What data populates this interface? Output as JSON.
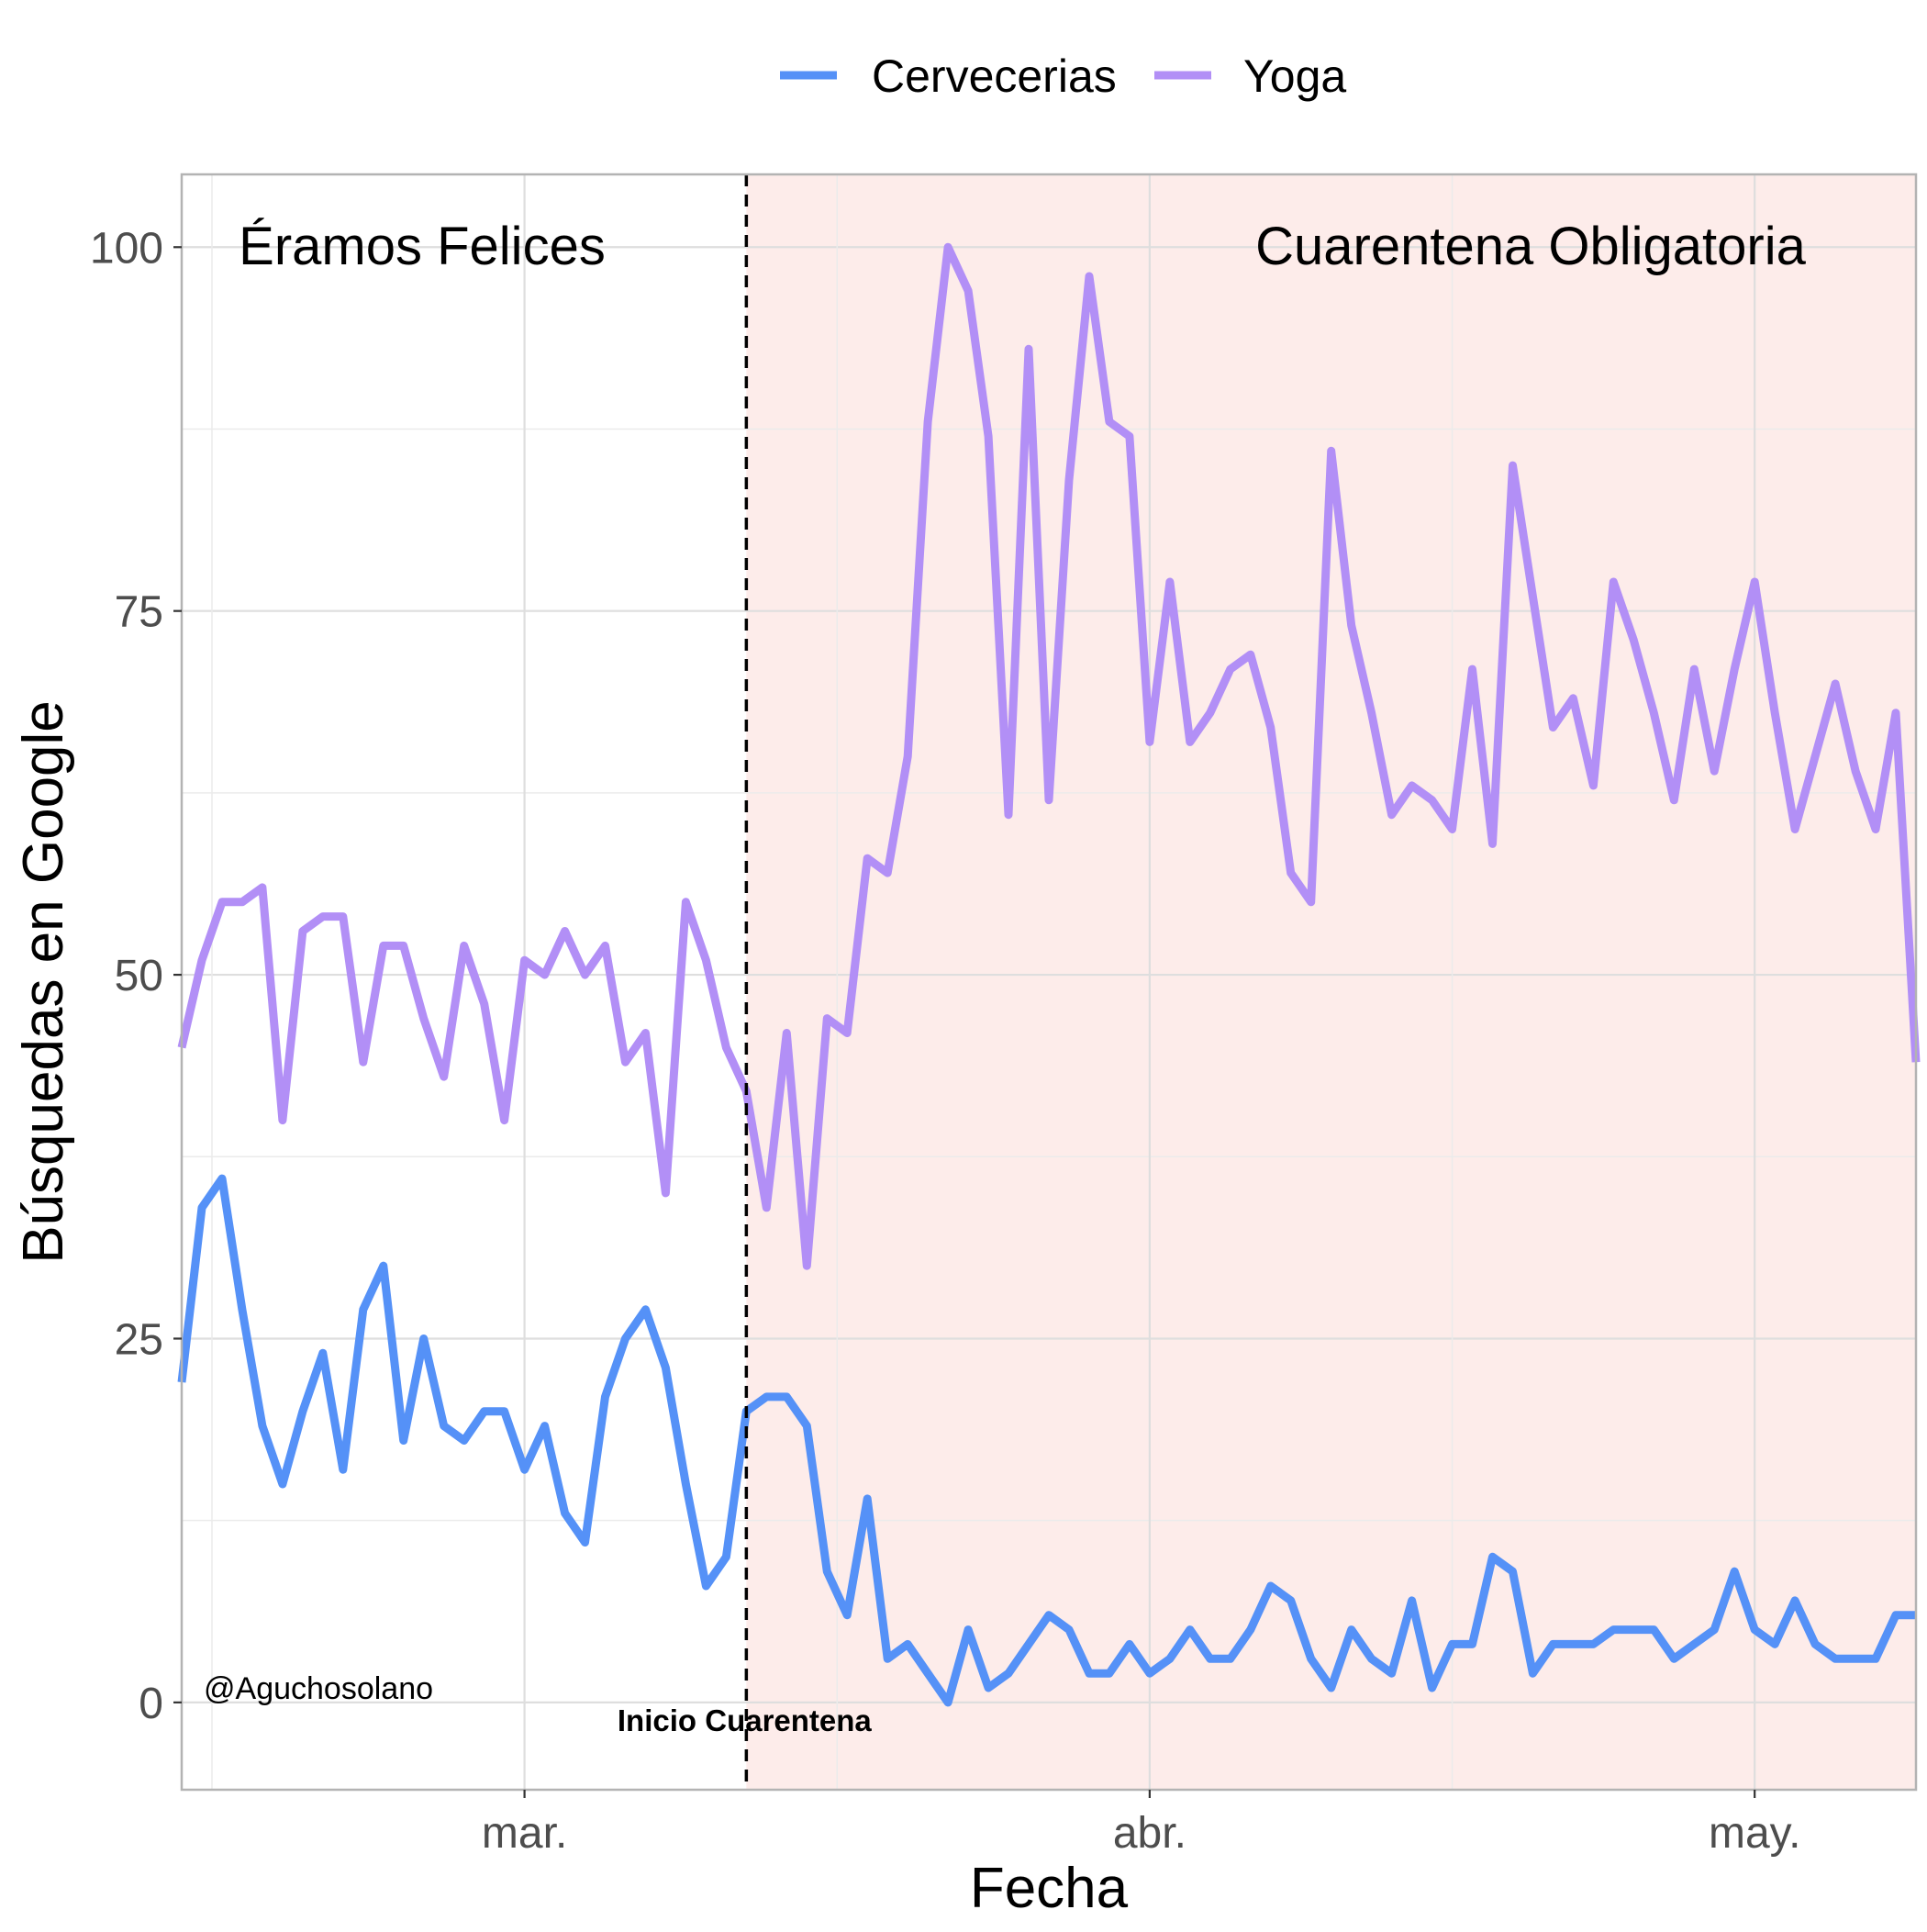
{
  "chart_data": {
    "type": "line",
    "xlabel": "Fecha",
    "ylabel": "Búsquedas en Google",
    "ylim": [
      -6,
      105
    ],
    "yticks": [
      0,
      25,
      50,
      75,
      100
    ],
    "ytick_labels": [
      "0",
      "25",
      "50",
      "75",
      "100"
    ],
    "x_start": "2020-02-13",
    "xlim": [
      "2020-02-13",
      "2020-05-09"
    ],
    "xticks": [
      "2020-03-01",
      "2020-04-01",
      "2020-05-01"
    ],
    "xtick_labels": [
      "mar.",
      "abr.",
      "may."
    ],
    "grid": true,
    "legend": {
      "position": "top",
      "entries": [
        "Cervecerias",
        "Yoga"
      ]
    },
    "quarantine_date": "2020-03-12",
    "quarantine_label": "Inicio Cuarentena",
    "region_labels": {
      "before": "Éramos Felices",
      "after": "Cuarentena Obligatoria"
    },
    "credit": "@Aguchosolano",
    "colors": {
      "Cervecerias": "#5591f7",
      "Yoga": "#b28ff6",
      "shaded_region": "#fdecea",
      "vline": "#000000"
    },
    "series": [
      {
        "name": "Cervecerias",
        "values": [
          22,
          34,
          36,
          27,
          19,
          15,
          20,
          24,
          16,
          27,
          30,
          18,
          25,
          19,
          18,
          20,
          20,
          16,
          19,
          13,
          11,
          21,
          25,
          27,
          23,
          15,
          8,
          10,
          20,
          21,
          21,
          19,
          9,
          6,
          14,
          3,
          4,
          2,
          0,
          5,
          1,
          2,
          4,
          6,
          5,
          2,
          2,
          4,
          2,
          3,
          5,
          3,
          3,
          5,
          8,
          7,
          3,
          1,
          5,
          3,
          2,
          7,
          1,
          4,
          4,
          10,
          9,
          2,
          4,
          4,
          4,
          5,
          5,
          5,
          3,
          4,
          5,
          9,
          5,
          4,
          7,
          4,
          3,
          3,
          3,
          6,
          6
        ]
      },
      {
        "name": "Yoga",
        "values": [
          45,
          51,
          55,
          55,
          56,
          40,
          53,
          54,
          54,
          44,
          52,
          52,
          47,
          43,
          52,
          48,
          40,
          51,
          50,
          53,
          50,
          52,
          44,
          46,
          35,
          55,
          51,
          45,
          42,
          34,
          46,
          30,
          47,
          46,
          58,
          57,
          65,
          88,
          100,
          97,
          87,
          61,
          93,
          62,
          84,
          98,
          88,
          87,
          66,
          77,
          66,
          68,
          71,
          72,
          67,
          57,
          55,
          86,
          74,
          68,
          61,
          63,
          62,
          60,
          71,
          59,
          85,
          76,
          67,
          69,
          63,
          77,
          73,
          68,
          62,
          71,
          64,
          71,
          77,
          68,
          60,
          65,
          70,
          64,
          60,
          68,
          44
        ]
      }
    ]
  }
}
